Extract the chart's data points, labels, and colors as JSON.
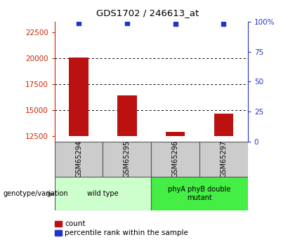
{
  "title": "GDS1702 / 246613_at",
  "samples": [
    "GSM65294",
    "GSM65295",
    "GSM65296",
    "GSM65297"
  ],
  "counts": [
    20100,
    16400,
    12900,
    14700
  ],
  "percentiles": [
    99,
    99,
    98.5,
    98.5
  ],
  "ylim_left": [
    12000,
    23500
  ],
  "ylim_right": [
    0,
    100
  ],
  "yticks_left": [
    12500,
    15000,
    17500,
    20000,
    22500
  ],
  "yticks_right": [
    0,
    25,
    50,
    75,
    100
  ],
  "ytick_labels_right": [
    "0",
    "25",
    "50",
    "75",
    "100%"
  ],
  "bar_color": "#BB1111",
  "dot_color": "#2233CC",
  "groups": [
    {
      "label": "wild type",
      "samples": [
        0,
        1
      ],
      "color": "#ccffcc"
    },
    {
      "label": "phyA phyB double\nmutant",
      "samples": [
        2,
        3
      ],
      "color": "#44ee44"
    }
  ],
  "legend_items": [
    {
      "color": "#BB1111",
      "label": "count"
    },
    {
      "color": "#2233CC",
      "label": "percentile rank within the sample"
    }
  ],
  "left_axis_color": "#CC2200",
  "right_axis_color": "#2233CC",
  "sample_box_color": "#cccccc",
  "genotype_label": "genotype/variation",
  "base_value": 12500
}
